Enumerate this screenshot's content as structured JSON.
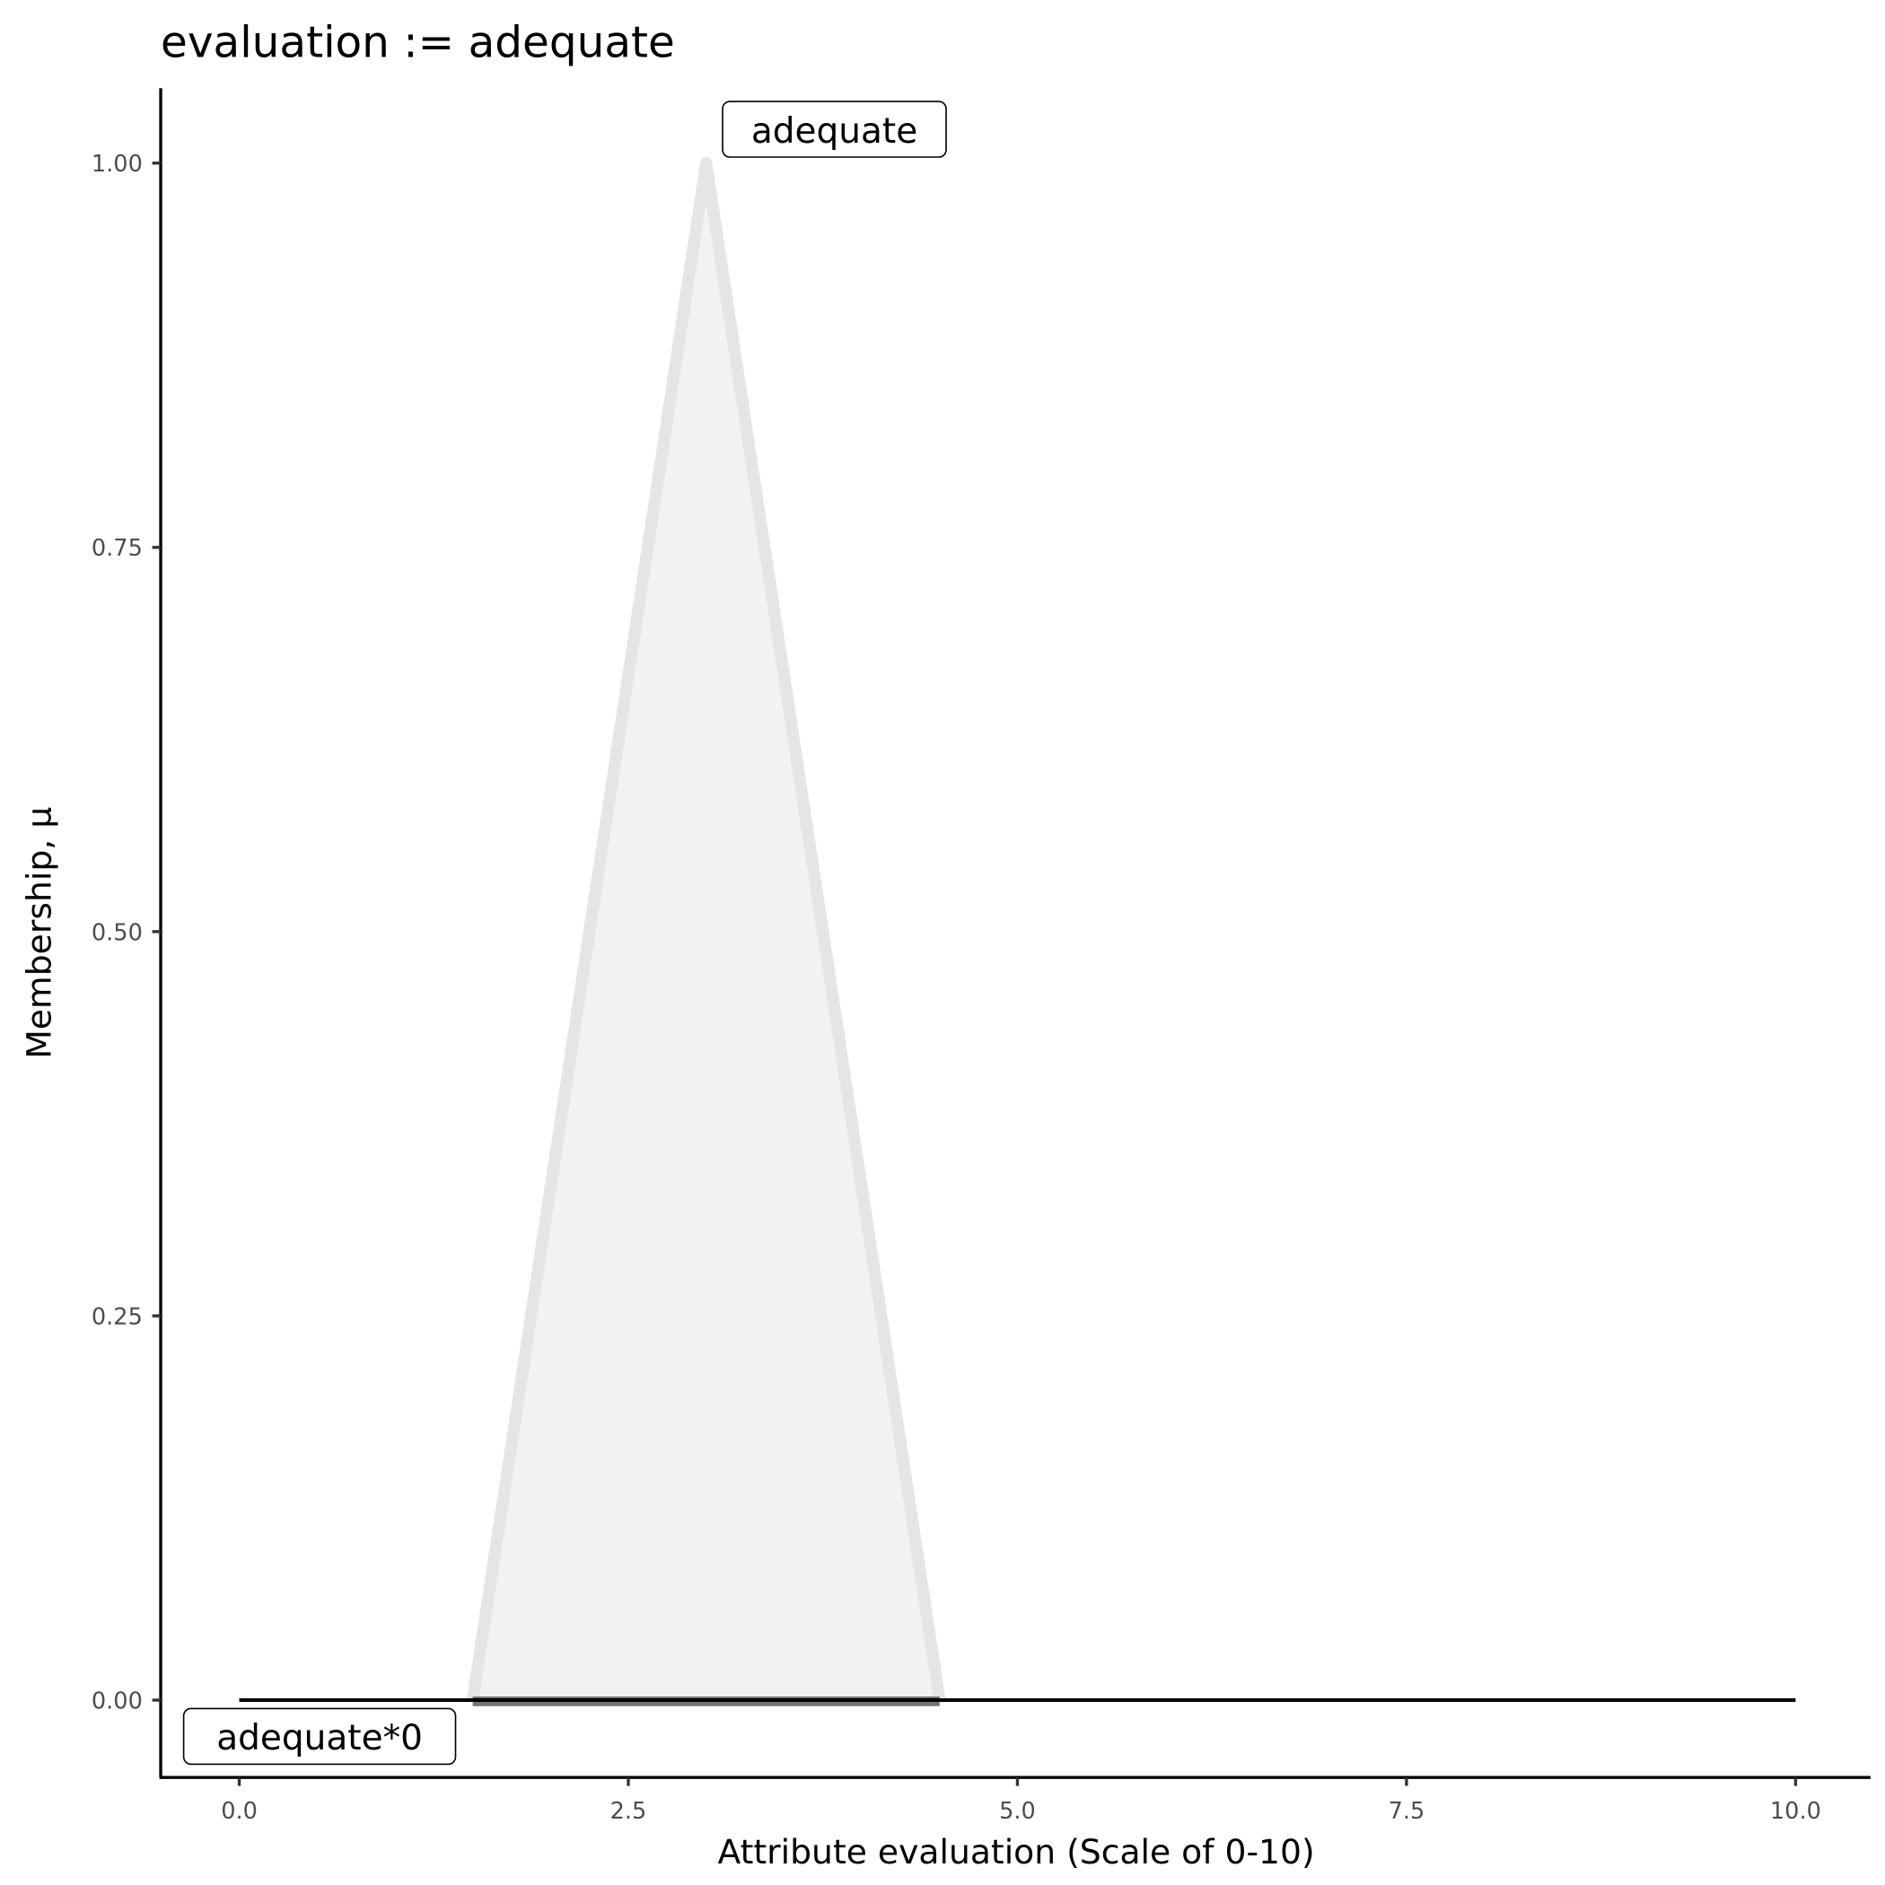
{
  "chart_data": {
    "type": "area",
    "title": "evaluation := adequate",
    "xlabel": "Attribute evaluation (Scale of 0-10)",
    "ylabel": "Membership, μ",
    "xlim": [
      -0.5,
      10.5
    ],
    "ylim": [
      -0.05,
      1.05
    ],
    "xticks": [
      "0.0",
      "2.5",
      "5.0",
      "7.5",
      "10.0"
    ],
    "xtick_values": [
      0,
      2.5,
      5,
      7.5,
      10
    ],
    "yticks": [
      "0.00",
      "0.25",
      "0.50",
      "0.75",
      "1.00"
    ],
    "ytick_values": [
      0,
      0.25,
      0.5,
      0.75,
      1
    ],
    "grid": false,
    "series": [
      {
        "name": "adequate",
        "x": [
          1.5,
          3,
          4.5
        ],
        "y": [
          0,
          1,
          0
        ],
        "fill": "#f2f2f2",
        "stroke": "#e5e5e5"
      },
      {
        "name": "adequate*0",
        "x": [
          0,
          10
        ],
        "y": [
          0,
          0
        ],
        "stroke": "#000000"
      }
    ],
    "annotations": [
      {
        "text": "adequate",
        "x": 3,
        "y": 1
      },
      {
        "text": "adequate*0",
        "x": 0,
        "y": 0
      }
    ]
  }
}
